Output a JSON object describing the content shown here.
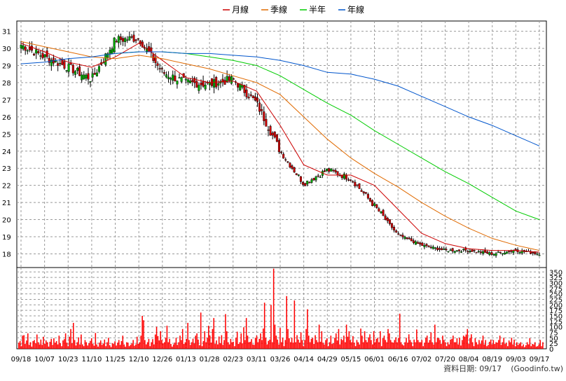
{
  "chart_data": [
    {
      "type": "candlestick",
      "title": "",
      "legend_position": "top-center",
      "legend": [
        {
          "name": "月線",
          "color": "#cc0000"
        },
        {
          "name": "季線",
          "color": "#e06a00"
        },
        {
          "name": "半年",
          "color": "#00cc00"
        },
        {
          "name": "年線",
          "color": "#0055cc"
        }
      ],
      "ylim": [
        17.2,
        31.6
      ],
      "yticks": [
        "18",
        "19",
        "20",
        "21",
        "22",
        "23",
        "24",
        "25",
        "26",
        "27",
        "28",
        "29",
        "30",
        "31"
      ],
      "grid": true,
      "x_labels": [
        "09/18",
        "10/07",
        "10/23",
        "11/10",
        "11/25",
        "12/10",
        "12/26",
        "01/13",
        "01/28",
        "02/23",
        "03/11",
        "03/26",
        "04/14",
        "04/29",
        "05/15",
        "06/01",
        "06/16",
        "07/02",
        "07/20",
        "08/04",
        "08/19",
        "09/03",
        "09/17"
      ],
      "up_color": "#00aa00",
      "down_color": "#cc0000",
      "price_anchors": [
        {
          "x": "09/18",
          "close": 30.2
        },
        {
          "x": "10/07",
          "close": 29.5
        },
        {
          "x": "10/23",
          "close": 28.9
        },
        {
          "x": "11/10",
          "close": 28.2
        },
        {
          "x": "11/25",
          "close": 30.5
        },
        {
          "x": "12/10",
          "close": 30.6
        },
        {
          "x": "12/26",
          "close": 28.6
        },
        {
          "x": "01/13",
          "close": 28.0
        },
        {
          "x": "01/28",
          "close": 27.9
        },
        {
          "x": "02/23",
          "close": 28.2
        },
        {
          "x": "03/11",
          "close": 26.8
        },
        {
          "x": "03/26",
          "close": 24.0
        },
        {
          "x": "04/14",
          "close": 22.1
        },
        {
          "x": "04/29",
          "close": 22.9
        },
        {
          "x": "05/15",
          "close": 22.4
        },
        {
          "x": "06/01",
          "close": 20.8
        },
        {
          "x": "06/16",
          "close": 19.1
        },
        {
          "x": "07/02",
          "close": 18.5
        },
        {
          "x": "07/20",
          "close": 18.2
        },
        {
          "x": "08/04",
          "close": 18.2
        },
        {
          "x": "08/19",
          "close": 18.0
        },
        {
          "x": "09/03",
          "close": 18.2
        },
        {
          "x": "09/17",
          "close": 18.0
        }
      ],
      "series": [
        {
          "name": "月線",
          "values": [
            {
              "x": "09/18",
              "y": 30.3
            },
            {
              "x": "10/07",
              "y": 29.8
            },
            {
              "x": "10/23",
              "y": 29.2
            },
            {
              "x": "11/10",
              "y": 28.9
            },
            {
              "x": "11/25",
              "y": 29.5
            },
            {
              "x": "12/10",
              "y": 30.3
            },
            {
              "x": "12/26",
              "y": 29.3
            },
            {
              "x": "01/13",
              "y": 28.3
            },
            {
              "x": "01/28",
              "y": 28.0
            },
            {
              "x": "02/23",
              "y": 28.1
            },
            {
              "x": "03/11",
              "y": 27.5
            },
            {
              "x": "03/26",
              "y": 25.5
            },
            {
              "x": "04/14",
              "y": 23.2
            },
            {
              "x": "04/29",
              "y": 22.6
            },
            {
              "x": "05/15",
              "y": 22.6
            },
            {
              "x": "06/01",
              "y": 22.0
            },
            {
              "x": "06/16",
              "y": 20.6
            },
            {
              "x": "07/02",
              "y": 19.2
            },
            {
              "x": "07/20",
              "y": 18.6
            },
            {
              "x": "08/04",
              "y": 18.3
            },
            {
              "x": "08/19",
              "y": 18.2
            },
            {
              "x": "09/03",
              "y": 18.2
            },
            {
              "x": "09/17",
              "y": 18.1
            }
          ]
        },
        {
          "name": "季線",
          "values": [
            {
              "x": "09/18",
              "y": 30.4
            },
            {
              "x": "10/07",
              "y": 30.1
            },
            {
              "x": "10/23",
              "y": 29.8
            },
            {
              "x": "11/10",
              "y": 29.5
            },
            {
              "x": "11/25",
              "y": 29.4
            },
            {
              "x": "12/10",
              "y": 29.6
            },
            {
              "x": "12/26",
              "y": 29.4
            },
            {
              "x": "01/13",
              "y": 29.1
            },
            {
              "x": "01/28",
              "y": 28.8
            },
            {
              "x": "02/23",
              "y": 28.4
            },
            {
              "x": "03/11",
              "y": 28.0
            },
            {
              "x": "03/26",
              "y": 27.3
            },
            {
              "x": "04/14",
              "y": 26.0
            },
            {
              "x": "04/29",
              "y": 24.7
            },
            {
              "x": "05/15",
              "y": 23.6
            },
            {
              "x": "06/01",
              "y": 22.7
            },
            {
              "x": "06/16",
              "y": 21.9
            },
            {
              "x": "07/02",
              "y": 21.0
            },
            {
              "x": "07/20",
              "y": 20.2
            },
            {
              "x": "08/04",
              "y": 19.5
            },
            {
              "x": "08/19",
              "y": 18.9
            },
            {
              "x": "09/03",
              "y": 18.5
            },
            {
              "x": "09/17",
              "y": 18.2
            }
          ]
        },
        {
          "name": "半年",
          "values": [
            {
              "x": "11/25",
              "y": 29.7
            },
            {
              "x": "12/10",
              "y": 29.8
            },
            {
              "x": "12/26",
              "y": 29.8
            },
            {
              "x": "01/13",
              "y": 29.7
            },
            {
              "x": "01/28",
              "y": 29.5
            },
            {
              "x": "02/23",
              "y": 29.3
            },
            {
              "x": "03/11",
              "y": 29.0
            },
            {
              "x": "03/26",
              "y": 28.4
            },
            {
              "x": "04/14",
              "y": 27.6
            },
            {
              "x": "04/29",
              "y": 26.8
            },
            {
              "x": "05/15",
              "y": 26.1
            },
            {
              "x": "06/01",
              "y": 25.2
            },
            {
              "x": "06/16",
              "y": 24.4
            },
            {
              "x": "07/02",
              "y": 23.6
            },
            {
              "x": "07/20",
              "y": 22.8
            },
            {
              "x": "08/04",
              "y": 22.1
            },
            {
              "x": "08/19",
              "y": 21.3
            },
            {
              "x": "09/03",
              "y": 20.5
            },
            {
              "x": "09/17",
              "y": 20.0
            }
          ]
        },
        {
          "name": "年線",
          "values": [
            {
              "x": "09/18",
              "y": 29.1
            },
            {
              "x": "10/07",
              "y": 29.2
            },
            {
              "x": "10/23",
              "y": 29.4
            },
            {
              "x": "11/10",
              "y": 29.5
            },
            {
              "x": "11/25",
              "y": 29.7
            },
            {
              "x": "12/10",
              "y": 29.8
            },
            {
              "x": "12/26",
              "y": 29.8
            },
            {
              "x": "01/13",
              "y": 29.7
            },
            {
              "x": "01/28",
              "y": 29.7
            },
            {
              "x": "02/23",
              "y": 29.6
            },
            {
              "x": "03/11",
              "y": 29.5
            },
            {
              "x": "03/26",
              "y": 29.3
            },
            {
              "x": "04/14",
              "y": 29.0
            },
            {
              "x": "04/29",
              "y": 28.6
            },
            {
              "x": "05/15",
              "y": 28.5
            },
            {
              "x": "06/01",
              "y": 28.2
            },
            {
              "x": "06/16",
              "y": 27.8
            },
            {
              "x": "07/02",
              "y": 27.2
            },
            {
              "x": "07/20",
              "y": 26.6
            },
            {
              "x": "08/04",
              "y": 26.0
            },
            {
              "x": "08/19",
              "y": 25.5
            },
            {
              "x": "09/03",
              "y": 24.9
            },
            {
              "x": "09/17",
              "y": 24.3
            }
          ]
        }
      ]
    },
    {
      "type": "bar",
      "title": "",
      "ylim": [
        0,
        370
      ],
      "yticks": [
        "0",
        "25",
        "50",
        "75",
        "100",
        "125",
        "150",
        "175",
        "200",
        "225",
        "250",
        "275",
        "300",
        "325",
        "350"
      ],
      "bar_color": "#ff0000",
      "grid": true,
      "x_labels": [
        "09/18",
        "10/07",
        "10/23",
        "11/10",
        "11/25",
        "12/10",
        "12/26",
        "01/13",
        "01/28",
        "02/23",
        "03/11",
        "03/26",
        "04/14",
        "04/29",
        "05/15",
        "06/01",
        "06/16",
        "07/02",
        "07/20",
        "08/04",
        "08/19",
        "09/03",
        "09/17"
      ],
      "values": [
        28,
        35,
        12,
        60,
        62,
        22,
        38,
        70,
        18,
        30,
        10,
        35,
        40,
        25,
        65,
        30,
        20,
        42,
        18,
        55,
        22,
        38,
        30,
        10,
        32,
        45,
        18,
        48,
        28,
        35,
        20,
        60,
        25,
        12,
        38,
        44,
        70,
        28,
        12,
        55,
        90,
        25,
        118,
        40,
        15,
        30,
        52,
        20,
        65,
        20,
        12,
        40,
        30,
        15,
        25,
        36,
        48,
        22,
        14,
        72,
        20,
        10,
        28,
        38,
        18,
        24,
        42,
        12,
        30,
        50,
        16,
        8,
        26,
        22,
        34,
        15,
        28,
        40,
        18,
        35,
        60,
        20,
        10,
        30,
        28,
        12,
        18,
        24,
        40,
        14,
        20,
        55,
        22,
        30,
        60,
        150,
        130,
        40,
        20,
        30,
        45,
        12,
        30,
        44,
        20,
        65,
        100,
        58,
        38,
        80,
        40,
        25,
        30,
        50,
        105,
        30,
        45,
        22,
        10,
        20,
        28,
        50,
        18,
        30,
        60,
        40,
        90,
        22,
        30,
        45,
        118,
        40,
        18,
        30,
        46,
        24,
        60,
        70,
        42,
        16,
        165,
        12,
        35,
        80,
        30,
        50,
        105,
        60,
        28,
        90,
        140,
        22,
        38,
        20,
        56,
        25,
        62,
        18,
        40,
        158,
        80,
        30,
        20,
        45,
        30,
        32,
        12,
        50,
        78,
        22,
        30,
        70,
        25,
        98,
        40,
        140,
        60,
        30,
        32,
        44,
        20,
        18,
        50,
        60,
        30,
        45,
        70,
        40,
        92,
        210,
        50,
        20,
        36,
        42,
        200,
        30,
        365,
        110,
        60,
        42,
        20,
        95,
        30,
        50,
        12,
        40,
        240,
        90,
        48,
        30,
        50,
        28,
        220,
        30,
        62,
        42,
        28,
        75,
        40,
        12,
        40,
        90,
        180,
        60,
        30,
        45,
        50,
        22,
        62,
        40,
        30,
        110,
        32,
        80,
        28,
        20,
        40,
        48,
        12,
        30,
        60,
        22,
        25,
        50,
        70,
        38,
        90,
        20,
        45,
        40,
        60,
        30,
        110,
        55,
        80,
        40,
        30,
        58,
        28,
        12,
        40,
        30,
        20,
        92,
        60,
        30,
        80,
        40,
        30,
        52,
        66,
        40,
        20,
        80,
        30,
        45,
        50,
        30,
        80,
        12,
        48,
        60,
        40,
        30,
        90,
        70,
        40,
        30,
        28,
        40,
        52,
        30,
        50,
        160,
        30,
        20,
        15,
        30,
        50,
        28,
        66,
        40,
        30,
        12,
        42,
        30,
        88,
        40,
        30,
        30,
        40,
        12,
        28,
        50,
        60,
        28,
        40,
        75,
        30,
        20,
        110,
        30,
        50,
        48,
        40,
        22,
        60,
        40,
        30,
        12,
        30,
        20,
        42,
        45,
        60,
        30,
        30,
        48,
        20,
        50,
        15,
        40,
        60,
        55,
        65,
        90,
        22,
        50,
        66,
        30,
        12,
        48,
        30,
        20,
        40,
        22,
        38,
        60,
        20,
        40,
        12,
        18,
        32,
        42,
        20,
        40,
        22,
        30,
        28,
        40,
        60,
        18,
        30,
        50,
        22,
        28,
        12,
        38,
        30,
        50,
        20,
        42,
        12,
        30,
        18,
        24,
        30,
        12,
        20,
        8,
        16,
        30,
        20,
        48,
        12,
        22,
        20,
        30,
        10,
        12,
        20,
        40,
        12,
        30
      ]
    }
  ],
  "footer": {
    "date_label": "資料日期: 09/17",
    "source_label": "(Goodinfo.tw)"
  }
}
